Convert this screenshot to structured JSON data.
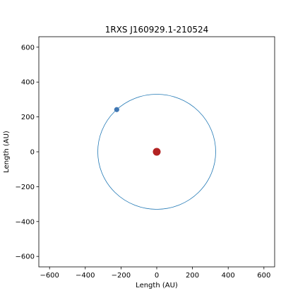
{
  "chart_data": {
    "type": "scatter",
    "title": "1RXS J160929.1-210524",
    "xlabel": "Length (AU)",
    "ylabel": "Length (AU)",
    "xlim": [
      -660,
      660
    ],
    "ylim": [
      -660,
      660
    ],
    "xticks": [
      -600,
      -400,
      -200,
      0,
      200,
      400,
      600
    ],
    "yticks": [
      -600,
      -400,
      -200,
      0,
      200,
      400,
      600
    ],
    "xtick_labels": [
      "−600",
      "−400",
      "−200",
      "0",
      "200",
      "400",
      "600"
    ],
    "ytick_labels": [
      "−600",
      "−400",
      "−200",
      "0",
      "200",
      "400",
      "600"
    ],
    "grid": false,
    "orbit": {
      "center": [
        0,
        0
      ],
      "radius": 330,
      "color": "#1f77b4"
    },
    "star": {
      "x": 0,
      "y": 0,
      "color": "#b22222"
    },
    "planet": {
      "x": -224,
      "y": 242,
      "color": "#4077b3"
    }
  }
}
